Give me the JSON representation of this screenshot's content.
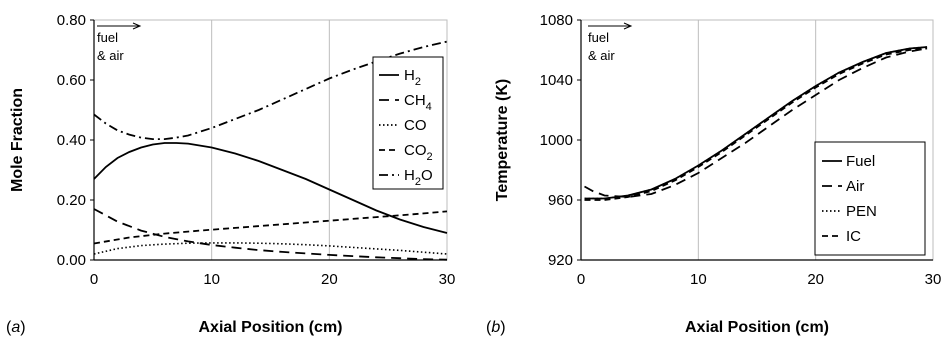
{
  "chart_data": [
    {
      "type": "line",
      "panel": "a",
      "xlabel": "Axial Position (cm)",
      "ylabel": "Mole Fraction",
      "xlim": [
        0,
        30
      ],
      "ylim": [
        0,
        0.8
      ],
      "xticks": [
        "0",
        "10",
        "20",
        "30"
      ],
      "yticks": [
        "0.00",
        "0.20",
        "0.40",
        "0.60",
        "0.80"
      ],
      "grid": "vertical",
      "legend_position": "right",
      "annotation": [
        "fuel",
        "& air"
      ],
      "series": [
        {
          "name": "H",
          "sub": "2",
          "dash": "solid",
          "x": [
            0,
            1,
            2,
            3,
            4,
            5,
            6,
            7,
            8,
            10,
            12,
            14,
            16,
            18,
            20,
            22,
            24,
            26,
            28,
            30
          ],
          "y": [
            0.27,
            0.31,
            0.34,
            0.36,
            0.375,
            0.385,
            0.39,
            0.39,
            0.388,
            0.375,
            0.355,
            0.33,
            0.3,
            0.27,
            0.235,
            0.2,
            0.165,
            0.135,
            0.11,
            0.09
          ]
        },
        {
          "name": "CH",
          "sub": "4",
          "dash": "longdash",
          "x": [
            0,
            2,
            4,
            6,
            8,
            10,
            12,
            14,
            16,
            18,
            20,
            22,
            24,
            26,
            28,
            30
          ],
          "y": [
            0.17,
            0.128,
            0.098,
            0.077,
            0.062,
            0.05,
            0.041,
            0.033,
            0.027,
            0.022,
            0.017,
            0.013,
            0.009,
            0.006,
            0.003,
            0.001
          ]
        },
        {
          "name": "CO",
          "sub": "",
          "dash": "dotted",
          "x": [
            0,
            2,
            4,
            6,
            8,
            10,
            12,
            14,
            16,
            18,
            20,
            22,
            24,
            26,
            28,
            30
          ],
          "y": [
            0.02,
            0.038,
            0.048,
            0.053,
            0.056,
            0.057,
            0.057,
            0.056,
            0.054,
            0.051,
            0.047,
            0.042,
            0.037,
            0.032,
            0.026,
            0.02
          ]
        },
        {
          "name": "CO",
          "sub": "2",
          "dash": "shortdash",
          "x": [
            0,
            3,
            6,
            9,
            12,
            15,
            18,
            21,
            24,
            27,
            30
          ],
          "y": [
            0.055,
            0.075,
            0.088,
            0.098,
            0.107,
            0.116,
            0.125,
            0.134,
            0.143,
            0.152,
            0.162
          ]
        },
        {
          "name": "H",
          "sub": "2",
          "suffix": "O",
          "dash": "dashdot",
          "x": [
            0,
            1,
            2,
            3,
            4,
            5,
            6,
            7,
            8,
            10,
            12,
            14,
            16,
            18,
            20,
            22,
            24,
            26,
            28,
            30
          ],
          "y": [
            0.485,
            0.455,
            0.432,
            0.418,
            0.408,
            0.403,
            0.403,
            0.408,
            0.415,
            0.44,
            0.47,
            0.5,
            0.535,
            0.57,
            0.605,
            0.635,
            0.662,
            0.688,
            0.71,
            0.728
          ]
        }
      ]
    },
    {
      "type": "line",
      "panel": "b",
      "xlabel": "Axial Position (cm)",
      "ylabel": "Temperature (K)",
      "xlim": [
        0,
        30
      ],
      "ylim": [
        920,
        1080
      ],
      "xticks": [
        "0",
        "10",
        "20",
        "30"
      ],
      "yticks": [
        "920",
        "960",
        "1000",
        "1040",
        "1080"
      ],
      "grid": "vertical",
      "legend_position": "bottom-right",
      "annotation": [
        "fuel",
        "& air"
      ],
      "series": [
        {
          "name": "Fuel",
          "dash": "solid",
          "x": [
            0.3,
            2,
            4,
            6,
            8,
            10,
            12,
            14,
            16,
            18,
            20,
            22,
            24,
            26,
            28,
            29.5
          ],
          "y": [
            961,
            961,
            963,
            967,
            974,
            983,
            993,
            1004,
            1015,
            1026,
            1036,
            1045,
            1052,
            1058,
            1061,
            1062
          ]
        },
        {
          "name": "Air",
          "dash": "longdash",
          "x": [
            0.3,
            1,
            2,
            4,
            6,
            8,
            10,
            12,
            14,
            16,
            18,
            20,
            22,
            24,
            26,
            28,
            29.5
          ],
          "y": [
            969,
            966,
            963,
            962,
            964,
            970,
            978,
            988,
            998,
            1009,
            1020,
            1030,
            1040,
            1048,
            1055,
            1059,
            1061
          ]
        },
        {
          "name": "PEN",
          "dash": "dotted",
          "x": [
            0.3,
            2,
            4,
            6,
            8,
            10,
            12,
            14,
            16,
            18,
            20,
            22,
            24,
            26,
            28,
            29.5
          ],
          "y": [
            961,
            961,
            963,
            967,
            974,
            983,
            993,
            1004,
            1015,
            1026,
            1036,
            1045,
            1052,
            1058,
            1061,
            1062
          ]
        },
        {
          "name": "IC",
          "dash": "shortdash",
          "x": [
            0.3,
            2,
            4,
            6,
            8,
            10,
            12,
            14,
            16,
            18,
            20,
            22,
            24,
            26,
            28,
            29.5
          ],
          "y": [
            960,
            960,
            962,
            966,
            973,
            982,
            992,
            1003,
            1014,
            1025,
            1035,
            1044,
            1051,
            1057,
            1060,
            1061
          ]
        }
      ]
    }
  ]
}
